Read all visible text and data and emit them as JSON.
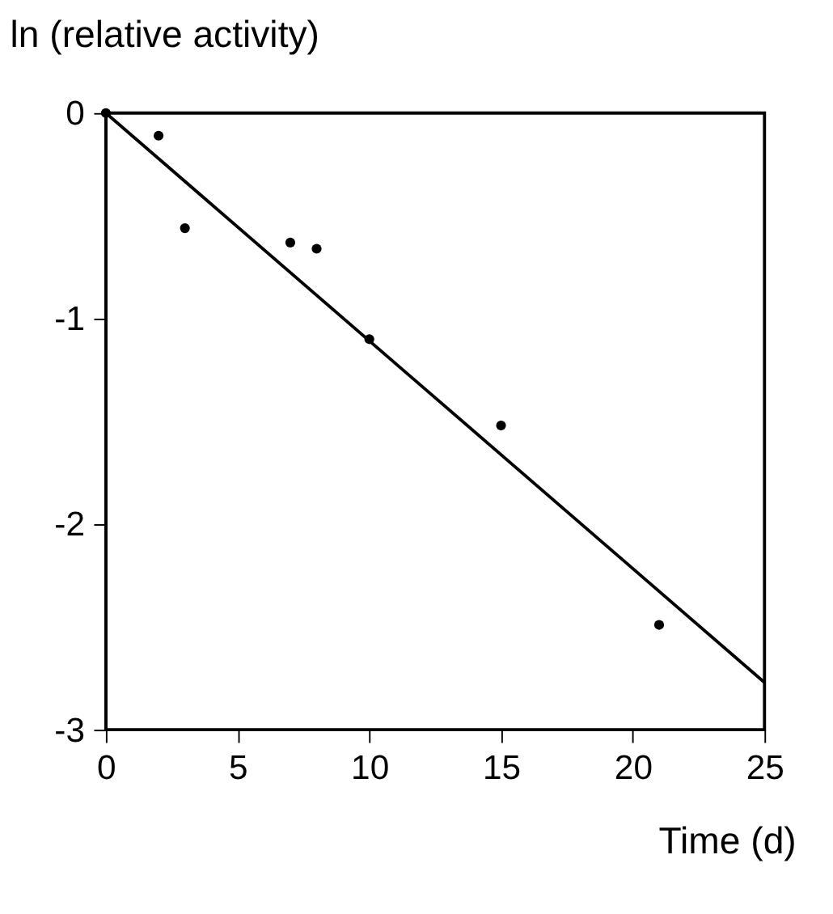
{
  "chart_data": {
    "type": "scatter",
    "xlabel": "Time (d)",
    "ylabel": "ln (relative activity)",
    "xlim": [
      0,
      25
    ],
    "xticks": [
      0,
      5,
      10,
      15,
      20,
      25
    ],
    "ylim": [
      -3,
      0
    ],
    "yticks": [
      {
        "value": -3,
        "label": "-3"
      },
      {
        "value": -2,
        "label": "-2"
      },
      {
        "value": -1,
        "label": "-1"
      },
      0
    ],
    "grid": false,
    "series": [
      {
        "color": "#000000",
        "marker": "circle",
        "x": [
          0,
          2,
          3,
          7,
          8,
          10,
          15,
          21
        ],
        "values": [
          0,
          -0.11,
          -0.56,
          -0.63,
          -0.66,
          -1.1,
          -1.52,
          -2.49
        ]
      },
      {
        "type": "line",
        "color": "#000000",
        "x": [
          0,
          25
        ],
        "values": [
          0,
          -2.77
        ],
        "line_style": "solid"
      }
    ]
  }
}
